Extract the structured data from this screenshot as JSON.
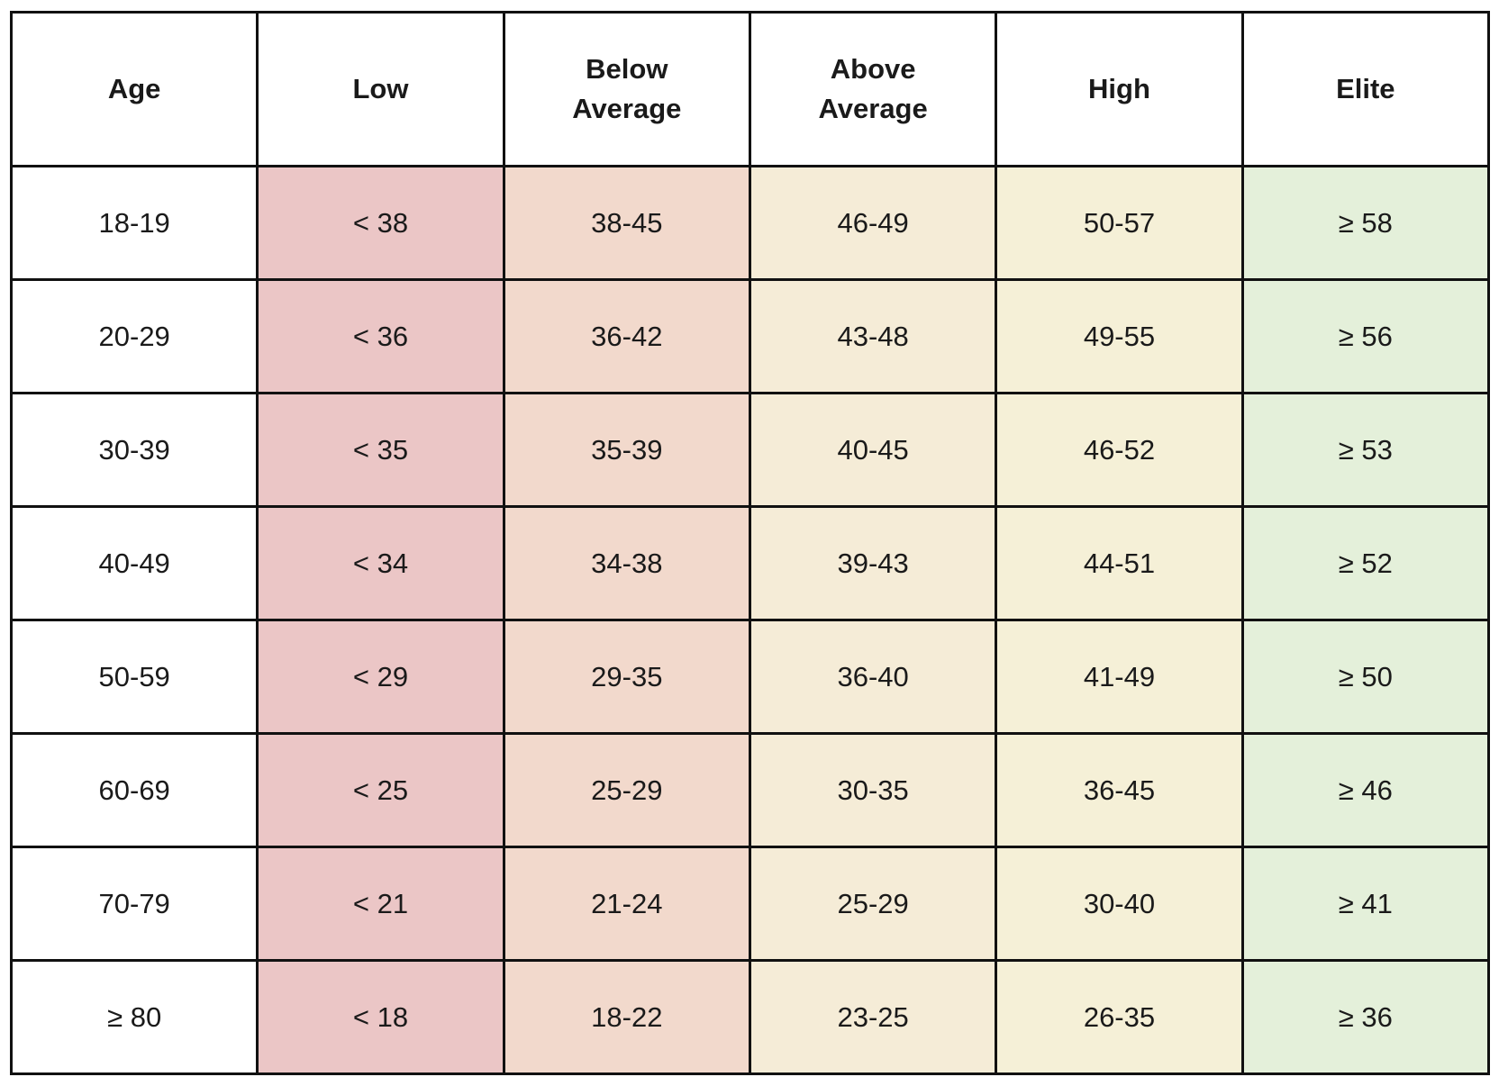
{
  "table": {
    "headers": [
      "Age",
      "Low",
      "Below Average",
      "Above Average",
      "High",
      "Elite"
    ],
    "rows": [
      [
        "18-19",
        "< 38",
        "38-45",
        "46-49",
        "50-57",
        "≥ 58"
      ],
      [
        "20-29",
        "< 36",
        "36-42",
        "43-48",
        "49-55",
        "≥ 56"
      ],
      [
        "30-39",
        "< 35",
        "35-39",
        "40-45",
        "46-52",
        "≥ 53"
      ],
      [
        "40-49",
        "< 34",
        "34-38",
        "39-43",
        "44-51",
        "≥ 52"
      ],
      [
        "50-59",
        "< 29",
        "29-35",
        "36-40",
        "41-49",
        "≥ 50"
      ],
      [
        "60-69",
        "< 25",
        "25-29",
        "30-35",
        "36-45",
        "≥ 46"
      ],
      [
        "70-79",
        "< 21",
        "21-24",
        "25-29",
        "30-40",
        "≥ 41"
      ],
      [
        "≥ 80",
        "< 18",
        "18-22",
        "23-25",
        "26-35",
        "≥ 36"
      ]
    ]
  }
}
